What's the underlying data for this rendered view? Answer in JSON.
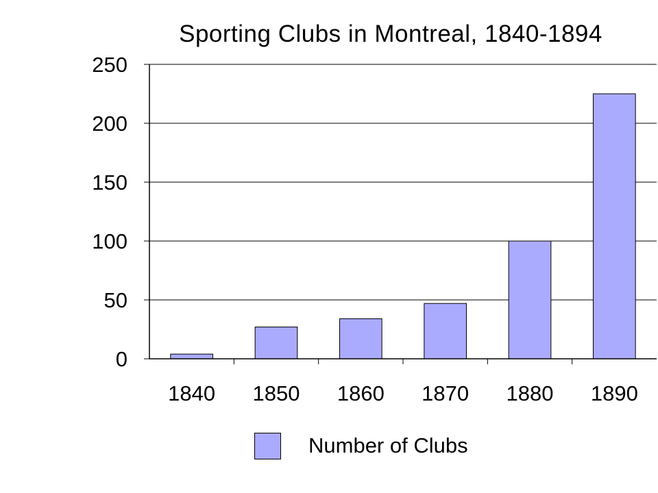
{
  "chart_data": {
    "type": "bar",
    "title": "Sporting Clubs in Montreal, 1840-1894",
    "xlabel": "",
    "ylabel": "",
    "categories": [
      "1840",
      "1850",
      "1860",
      "1870",
      "1880",
      "1890"
    ],
    "series": [
      {
        "name": "Number of Clubs",
        "values": [
          4,
          27,
          34,
          47,
          100,
          225
        ],
        "color": "#aaaaff"
      }
    ],
    "ylim": [
      0,
      250
    ],
    "yticks": [
      0,
      50,
      100,
      150,
      200,
      250
    ],
    "grid": true,
    "legend_position": "bottom"
  }
}
